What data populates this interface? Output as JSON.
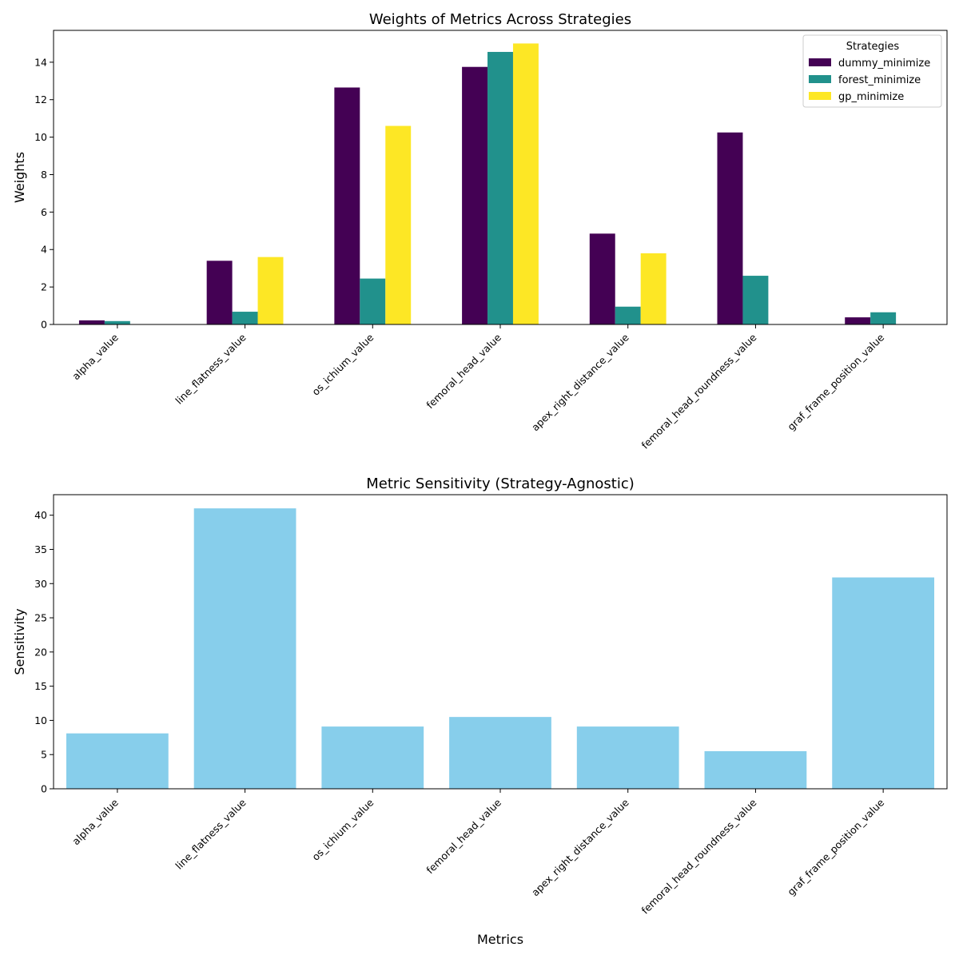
{
  "chart_data": [
    {
      "type": "bar",
      "title": "Weights of Metrics Across Strategies",
      "xlabel": "",
      "ylabel": "Weights",
      "ylim": [
        0,
        15.7
      ],
      "yticks": [
        0,
        2,
        4,
        6,
        8,
        10,
        12,
        14
      ],
      "categories": [
        "alpha_value",
        "line_flatness_value",
        "os_ichium_value",
        "femoral_head_value",
        "apex_right_distance_value",
        "femoral_head_roundness_value",
        "graf_frame_position_value"
      ],
      "series": [
        {
          "name": "dummy_minimize",
          "color": "#440154",
          "values": [
            0.22,
            3.4,
            12.65,
            13.75,
            4.85,
            10.25,
            0.38
          ]
        },
        {
          "name": "forest_minimize",
          "color": "#21918c",
          "values": [
            0.18,
            0.68,
            2.45,
            14.55,
            0.95,
            2.6,
            0.65
          ]
        },
        {
          "name": "gp_minimize",
          "color": "#fde725",
          "values": [
            0,
            3.6,
            10.6,
            15.0,
            3.8,
            0,
            0
          ]
        }
      ],
      "legend": {
        "title": "Strategies",
        "position": "top-right"
      },
      "grid": false
    },
    {
      "type": "bar",
      "title": "Metric Sensitivity (Strategy-Agnostic)",
      "xlabel": "Metrics",
      "ylabel": "Sensitivity",
      "ylim": [
        0,
        43
      ],
      "yticks": [
        0,
        5,
        10,
        15,
        20,
        25,
        30,
        35,
        40
      ],
      "categories": [
        "alpha_value",
        "line_flatness_value",
        "os_ichium_value",
        "femoral_head_value",
        "apex_right_distance_value",
        "femoral_head_roundness_value",
        "graf_frame_position_value"
      ],
      "series": [
        {
          "color": "#87ceeb",
          "values": [
            8.1,
            41.0,
            9.1,
            10.5,
            9.1,
            5.5,
            30.9
          ]
        }
      ],
      "grid": false
    }
  ]
}
